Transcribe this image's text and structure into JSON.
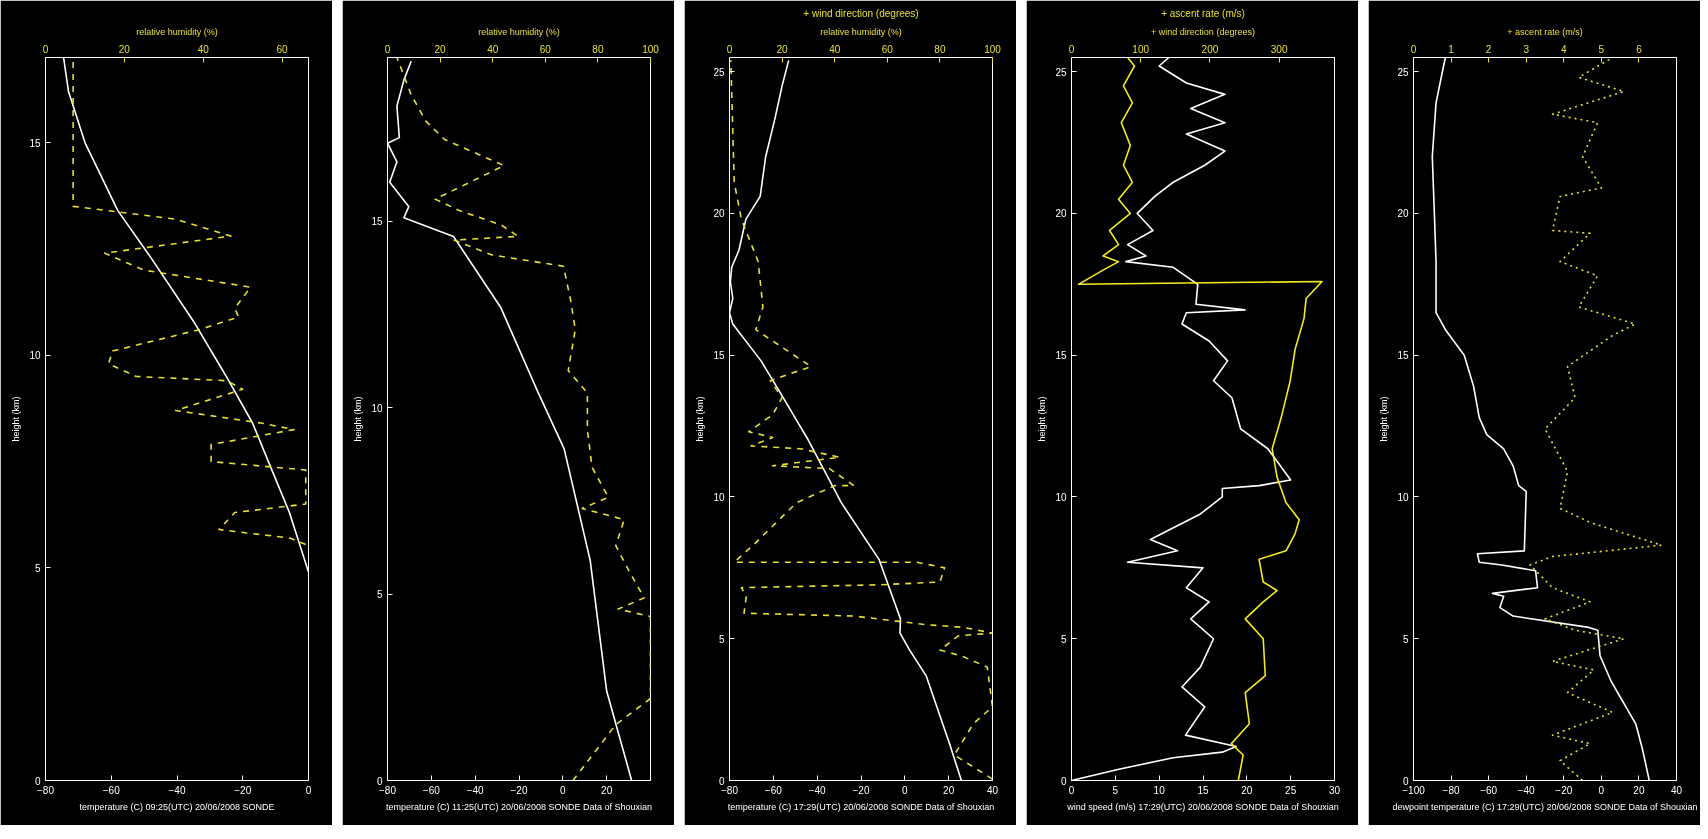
{
  "chart_data": [
    {
      "type": "line",
      "xlabel": "temperature (C) 09:25(UTC) 20/06/2008 SONDE",
      "x2label": "relative humidity (%)",
      "ylabel": "height (km)",
      "xlim": [
        -80,
        0
      ],
      "xticks": [
        -80,
        -60,
        -40,
        -20,
        0
      ],
      "x2lim": [
        0,
        66.7
      ],
      "x2ticks": [
        0,
        20,
        40,
        60
      ],
      "ylim": [
        0,
        17
      ],
      "yticks": [
        0,
        5,
        10,
        15
      ],
      "grid": false,
      "series": [
        {
          "color": "#ffffff",
          "line_style": "solid",
          "x": [
            0,
            -5.8,
            -17,
            -25,
            -35,
            -48,
            -58,
            -68,
            -73,
            -74.5
          ],
          "values": [
            4.9,
            6.3,
            8.4,
            9.5,
            10.8,
            12.3,
            13.4,
            15.0,
            16.2,
            17.0
          ]
        },
        {
          "color": "#e6e033",
          "line_style": "dashed",
          "axis": "x2",
          "x": [
            66,
            62,
            44,
            48,
            66,
            66,
            42,
            42,
            63,
            55,
            33,
            50,
            46,
            23,
            16,
            17,
            39,
            49,
            48,
            52,
            25,
            15,
            47,
            33,
            7,
            7
          ],
          "values": [
            5.55,
            5.7,
            5.9,
            6.3,
            6.5,
            7.3,
            7.5,
            7.9,
            8.25,
            8.4,
            8.7,
            9.2,
            9.4,
            9.5,
            9.8,
            10.1,
            10.6,
            10.9,
            11.1,
            11.6,
            12.0,
            12.4,
            12.8,
            13.2,
            13.5,
            17.0
          ]
        }
      ]
    },
    {
      "type": "line",
      "xlabel": "temperature (C) 11:25(UTC) 20/06/2008 SONDE Data of Shouxian",
      "x2label": "relative humidity (%)",
      "ylabel": "height (km)",
      "xlim": [
        -80,
        40
      ],
      "xticks": [
        -80,
        -60,
        -40,
        -20,
        0,
        20
      ],
      "x2lim": [
        0,
        100
      ],
      "x2ticks": [
        0,
        20,
        40,
        60,
        80,
        100
      ],
      "ylim": [
        0,
        19.4
      ],
      "yticks": [
        0,
        5,
        10,
        15
      ],
      "grid": false,
      "series": [
        {
          "color": "#ffffff",
          "line_style": "solid",
          "x": [
            31.4,
            20,
            12.5,
            0.6,
            -11.2,
            -28.4,
            -49.9,
            -72.5,
            -70.3,
            -79,
            -75.7,
            -80,
            -74.6,
            -75.7,
            -72.5,
            -69.2
          ],
          "values": [
            0,
            2.4,
            5.9,
            8.9,
            10.4,
            12.7,
            14.6,
            15.1,
            15.4,
            16.05,
            16.6,
            17.1,
            17.25,
            18.1,
            18.8,
            19.3
          ]
        },
        {
          "color": "#e6e033",
          "line_style": "dashed",
          "axis": "x2",
          "x": [
            70.5,
            86.8,
            100,
            100,
            87.7,
            97.6,
            92,
            86.8,
            90,
            74,
            84,
            77.8,
            76,
            76,
            68.7,
            71.4,
            69.6,
            66.9,
            39.8,
            25.3,
            49.7,
            43.4,
            27.1,
            18.1,
            29.8,
            44.3,
            21.7,
            14.5,
            9.0,
            3.6
          ],
          "values": [
            0,
            1.5,
            2.2,
            4.4,
            4.6,
            4.9,
            5.6,
            6.3,
            7.0,
            7.3,
            7.6,
            8.4,
            9.4,
            10.4,
            11.0,
            12.1,
            12.9,
            13.8,
            14.1,
            14.5,
            14.6,
            14.9,
            15.3,
            15.6,
            16.0,
            16.5,
            17.2,
            17.7,
            18.4,
            19.4
          ]
        }
      ]
    },
    {
      "type": "line",
      "xlabel": "temperature (C) 17:29(UTC) 20/06/2008 SONDE Data of Shouxian",
      "x2label": "relative humidity (%)",
      "annotations": [
        "+ wind direction (degrees)"
      ],
      "ylabel": "height (km)",
      "xlim": [
        -80,
        40
      ],
      "xticks": [
        -80,
        -60,
        -40,
        -20,
        0,
        20,
        40
      ],
      "x2lim": [
        0,
        100
      ],
      "x2ticks": [
        0,
        20,
        40,
        60,
        80,
        100
      ],
      "ylim": [
        0,
        25.5
      ],
      "yticks": [
        0,
        5,
        10,
        15,
        20,
        25
      ],
      "grid": false,
      "series": [
        {
          "color": "#ffffff",
          "line_style": "solid",
          "x": [
            25.8,
            20.4,
            9.7,
            2.2,
            -2.2,
            -2,
            -11.8,
            -29,
            -44,
            -57,
            -65.6,
            -78.5,
            -80,
            -78.5,
            -79.6,
            -79,
            -75.7,
            -72.5,
            -66,
            -63.5,
            -59.4,
            -56,
            -53
          ],
          "values": [
            0,
            1.3,
            3.7,
            4.6,
            5.2,
            5.7,
            7.8,
            9.8,
            12.0,
            13.7,
            14.8,
            16.1,
            16.5,
            17.0,
            17.6,
            18.1,
            18.7,
            19.8,
            20.6,
            22.0,
            23.3,
            24.5,
            25.4
          ]
        },
        {
          "color": "#e6e033",
          "line_style": "dashed",
          "axis": "x2",
          "x": [
            100,
            85.5,
            92.7,
            100,
            98,
            88,
            80,
            87,
            100,
            89,
            74.5,
            47.3,
            5.5,
            6.4,
            4.5,
            56.4,
            80,
            81.8,
            71,
            1.8,
            9,
            25.5,
            40,
            47.3,
            38,
            16.4,
            42,
            27,
            8.2,
            16.4,
            7.3,
            16.4,
            20,
            15.5,
            31,
            10,
            12.7,
            10.9,
            4.5,
            1.8,
            0.5
          ],
          "values": [
            0.05,
            0.9,
            2.0,
            2.6,
            4.0,
            4.4,
            4.6,
            5.1,
            5.2,
            5.4,
            5.5,
            5.8,
            5.9,
            6.5,
            6.8,
            6.9,
            7.0,
            7.5,
            7.7,
            7.7,
            8.3,
            9.8,
            10.4,
            10.4,
            11.0,
            11.1,
            11.4,
            11.7,
            11.8,
            12.1,
            12.3,
            12.9,
            13.5,
            14.1,
            14.6,
            15.9,
            16.7,
            18.3,
            19.8,
            21.1,
            25.4
          ]
        }
      ]
    },
    {
      "type": "line",
      "xlabel": "wind speed (m/s) 17:29(UTC) 20/06/2008 SONDE Data of Shouxian",
      "x2label": "+ wind direction (degrees)",
      "annotations": [
        "+ ascent rate (m/s)"
      ],
      "ylabel": "height (km)",
      "xlim": [
        0,
        30
      ],
      "xticks": [
        0,
        5,
        10,
        15,
        20,
        25,
        30
      ],
      "x2lim": [
        0,
        380
      ],
      "x2ticks": [
        0,
        100,
        200,
        300
      ],
      "ylim": [
        0,
        25.5
      ],
      "yticks": [
        0,
        5,
        10,
        15,
        20,
        25
      ],
      "grid": false,
      "series": [
        {
          "color": "#ffffff",
          "line_style": "solid",
          "x": [
            0,
            5.4,
            11.6,
            17.2,
            18.8,
            13,
            15.2,
            12.6,
            14.7,
            16.2,
            13.6,
            15.7,
            13.1,
            15,
            6.4,
            12.1,
            9,
            14.7,
            17.2,
            17.2,
            21.4,
            25,
            22.4,
            19.3,
            18.3,
            16.2,
            17.8,
            15.7,
            12.6,
            13.1,
            19.8,
            14.2,
            14.4,
            11.6,
            6.2,
            8.5,
            6.4,
            9.3,
            7.5,
            9.5,
            11.6,
            15.2,
            17.5,
            13.1,
            17.5,
            13.6,
            17.5,
            13.1,
            10,
            11.1
          ],
          "values": [
            0,
            0.4,
            0.8,
            1.0,
            1.2,
            1.6,
            2.6,
            3.3,
            4.0,
            5.0,
            5.7,
            6.3,
            6.8,
            7.5,
            7.7,
            8.1,
            8.5,
            9.4,
            10.0,
            10.3,
            10.4,
            10.6,
            11.7,
            12.4,
            13.5,
            14.1,
            14.8,
            15.5,
            16.1,
            16.5,
            16.6,
            16.8,
            17.5,
            18.1,
            18.3,
            18.5,
            18.9,
            19.4,
            20.0,
            20.6,
            21.1,
            21.7,
            22.2,
            22.8,
            23.2,
            23.7,
            24.2,
            24.6,
            25.2,
            25.5
          ]
        },
        {
          "color": "#f2ea1e",
          "line_style": "solid",
          "axis": "x2",
          "x": [
            241,
            248,
            231,
            257,
            251,
            280,
            277,
            251,
            277,
            297,
            277,
            271,
            310,
            323,
            329,
            310,
            297,
            290,
            303,
            316,
            323,
            336,
            339,
            362,
            10,
            45.6,
            68,
            45.6,
            68,
            55,
            85,
            68,
            88,
            75,
            85,
            72,
            88,
            75,
            91,
            81
          ],
          "values": [
            0,
            0.9,
            1.3,
            2.0,
            3.1,
            3.7,
            5.0,
            5.7,
            6.3,
            6.7,
            7.0,
            7.8,
            8.1,
            8.7,
            9.2,
            9.8,
            10.7,
            11.7,
            12.8,
            14.1,
            15.2,
            16.3,
            17.0,
            17.6,
            17.5,
            18.0,
            18.3,
            18.5,
            18.9,
            19.4,
            20.0,
            20.5,
            21.1,
            21.7,
            22.4,
            23.2,
            23.9,
            24.5,
            25.2,
            25.5
          ]
        }
      ]
    },
    {
      "type": "line",
      "xlabel": "dewpoint temperature (C) 17:29(UTC) 20/06/2008 SONDE Data of Shouxian",
      "x2label": "+ ascent rate (m/s)",
      "ylabel": "height (km)",
      "xlim": [
        -100,
        40
      ],
      "xticks": [
        -100,
        -80,
        -60,
        -40,
        -20,
        0,
        20,
        40
      ],
      "x2lim": [
        0,
        7
      ],
      "x2ticks": [
        0,
        1,
        2,
        3,
        4,
        5,
        6
      ],
      "ylim": [
        0,
        25.5
      ],
      "yticks": [
        0,
        5,
        10,
        15,
        20,
        25
      ],
      "grid": false,
      "series": [
        {
          "color": "#ffffff",
          "line_style": "solid",
          "x": [
            25.5,
            21.9,
            18.3,
            5.2,
            -0.7,
            -1.9,
            -6.7,
            -47,
            -54,
            -52,
            -58,
            -34,
            -35,
            -53,
            -65,
            -66,
            -41,
            -40,
            -44,
            -47,
            -52,
            -61,
            -65,
            -68,
            -73,
            -83,
            -88,
            -88,
            -89,
            -90,
            -88,
            -84,
            -83
          ],
          "values": [
            0,
            1.1,
            2.0,
            3.5,
            4.4,
            5.3,
            5.4,
            5.8,
            6.1,
            6.5,
            6.6,
            6.8,
            7.4,
            7.6,
            7.7,
            8.0,
            8.1,
            10.2,
            10.4,
            11.1,
            11.7,
            12.2,
            12.8,
            13.9,
            15.0,
            15.9,
            16.5,
            18.3,
            20.2,
            22.0,
            23.9,
            25.2,
            25.5
          ]
        },
        {
          "color": "#e6e033",
          "line_style": "dotted",
          "axis": "x2",
          "x": [
            4.5,
            3.9,
            4.7,
            3.7,
            5.3,
            4.1,
            4.8,
            3.7,
            5.6,
            4.3,
            3.5,
            4.7,
            3.7,
            3.1,
            3.7,
            6.6,
            4.7,
            3.9,
            4.1,
            3.5,
            4.3,
            4.1,
            5.3,
            5.9,
            4.4,
            4.9,
            3.9,
            4.7,
            3.7,
            3.9,
            5.0,
            4.5,
            4.9,
            3.7,
            5.6,
            4.4,
            5.3
          ],
          "values": [
            0,
            0.7,
            1.3,
            1.6,
            2.4,
            3.1,
            3.9,
            4.2,
            5.0,
            5.3,
            5.7,
            6.3,
            6.8,
            7.6,
            7.9,
            8.3,
            9.1,
            9.6,
            10.9,
            12.4,
            13.5,
            14.6,
            15.7,
            16.1,
            16.7,
            17.8,
            18.3,
            19.3,
            19.4,
            20.6,
            20.9,
            22.0,
            23.2,
            23.5,
            24.3,
            24.8,
            25.5
          ]
        }
      ]
    }
  ]
}
